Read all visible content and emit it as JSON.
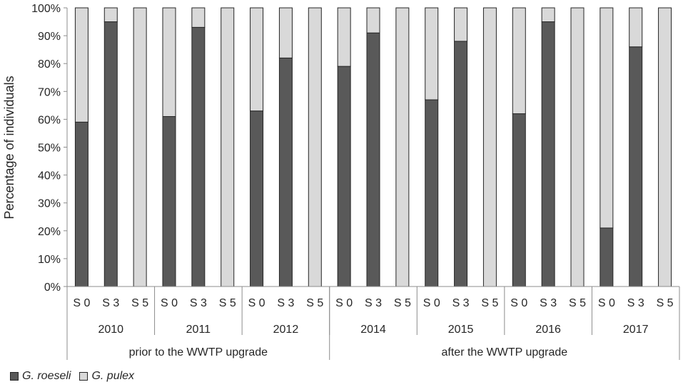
{
  "chart_data": {
    "type": "bar",
    "stacked": true,
    "normalized": true,
    "ylabel": "Percentage of individuals",
    "ylim": [
      0,
      100
    ],
    "yticks": [
      "0%",
      "10%",
      "20%",
      "30%",
      "40%",
      "50%",
      "60%",
      "70%",
      "80%",
      "90%",
      "100%"
    ],
    "grid": false,
    "legend_position": "bottom-left",
    "categories": [
      "S 0",
      "S 3",
      "S 5",
      "S 0",
      "S 3",
      "S 5",
      "S 0",
      "S 3",
      "S 5",
      "S 0",
      "S 3",
      "S 5",
      "S 0",
      "S 3",
      "S 5",
      "S 0",
      "S 3",
      "S 5",
      "S 0",
      "S 3",
      "S 5"
    ],
    "years": [
      {
        "label": "2010",
        "start": 0,
        "count": 3
      },
      {
        "label": "2011",
        "start": 3,
        "count": 3
      },
      {
        "label": "2012",
        "start": 6,
        "count": 3
      },
      {
        "label": "2014",
        "start": 9,
        "count": 3
      },
      {
        "label": "2015",
        "start": 12,
        "count": 3
      },
      {
        "label": "2016",
        "start": 15,
        "count": 3
      },
      {
        "label": "2017",
        "start": 18,
        "count": 3
      }
    ],
    "periods": [
      {
        "label": "prior to the WWTP upgrade",
        "start": 0,
        "count": 9
      },
      {
        "label": "after the WWTP upgrade",
        "start": 9,
        "count": 12
      }
    ],
    "series": [
      {
        "name": "G. roeseli",
        "color": "#595959",
        "values": [
          59,
          95,
          0,
          61,
          93,
          0,
          63,
          82,
          0,
          79,
          91,
          0,
          67,
          88,
          0,
          62,
          95,
          0,
          21,
          86,
          0
        ]
      },
      {
        "name": "G. pulex",
        "color": "#d9d9d9",
        "values": [
          41,
          5,
          100,
          39,
          7,
          100,
          37,
          18,
          100,
          21,
          9,
          100,
          33,
          12,
          100,
          38,
          5,
          100,
          79,
          14,
          100
        ]
      }
    ]
  }
}
